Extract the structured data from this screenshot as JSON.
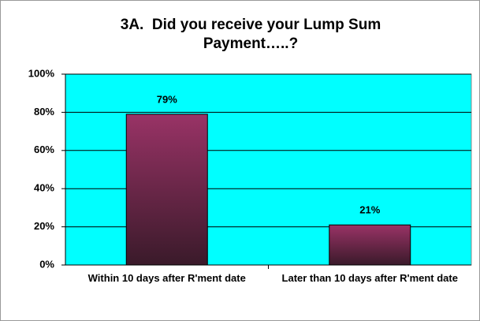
{
  "chart_data": {
    "type": "bar",
    "title": "3A.  Did you receive your Lump Sum Payment…..?",
    "categories": [
      "Within 10 days after R'ment date",
      "Later than 10 days after R'ment date"
    ],
    "values": [
      79,
      21
    ],
    "value_labels": [
      "79%",
      "21%"
    ],
    "color": "#993366",
    "plot_background": "#00ffff",
    "ylim": [
      0,
      100
    ],
    "yticks": [
      {
        "value": 0,
        "label": "0%"
      },
      {
        "value": 20,
        "label": "20%"
      },
      {
        "value": 40,
        "label": "40%"
      },
      {
        "value": 60,
        "label": "60%"
      },
      {
        "value": 80,
        "label": "80%"
      },
      {
        "value": 100,
        "label": "100%"
      }
    ],
    "grid": true
  }
}
